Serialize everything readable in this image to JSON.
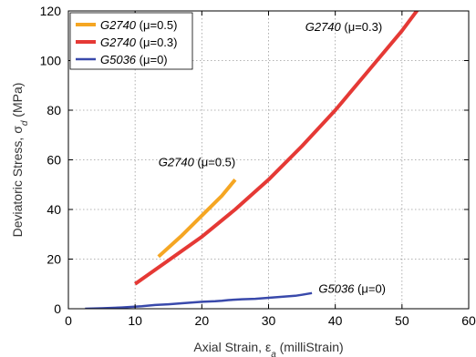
{
  "chart_data": {
    "type": "line",
    "xlabel": "Axial Strain, ε",
    "xlabel_sub": "a",
    "xlabel_unit": " (milliStrain)",
    "ylabel": "Deviatoric Stress, σ",
    "ylabel_sub": "d",
    "ylabel_unit": " (MPa)",
    "xlim": [
      0,
      60
    ],
    "ylim": [
      0,
      120
    ],
    "xticks": [
      "0",
      "10",
      "20",
      "30",
      "40",
      "50",
      "60"
    ],
    "yticks": [
      "0",
      "20",
      "40",
      "60",
      "80",
      "100",
      "120"
    ],
    "grid": true,
    "legend_position": "top-left",
    "series": [
      {
        "name": "G2740",
        "name_param": " (μ=0.5)",
        "color": "#f5a623",
        "x": [
          13.5,
          17,
          20,
          23,
          25
        ],
        "y": [
          21,
          29.5,
          37.5,
          45.5,
          52
        ]
      },
      {
        "name": "G2740",
        "name_param": " (μ=0.3)",
        "color": "#e53935",
        "x": [
          10,
          15,
          20,
          25,
          30,
          35,
          40,
          45,
          50,
          52.5
        ],
        "y": [
          10,
          19.5,
          29,
          40,
          52,
          65.5,
          80,
          96,
          112,
          121
        ]
      },
      {
        "name": "G5036",
        "name_param": " (μ=0)",
        "color": "#3949ab",
        "x": [
          2.5,
          5,
          8,
          11,
          13,
          15,
          17,
          20,
          22,
          23,
          24,
          26,
          28,
          30,
          32,
          34,
          35,
          36.5
        ],
        "y": [
          0,
          0.2,
          0.5,
          1.0,
          1.5,
          1.8,
          2.2,
          2.8,
          3.0,
          3.2,
          3.5,
          3.8,
          4.0,
          4.4,
          4.8,
          5.2,
          5.6,
          6.3
        ]
      }
    ],
    "annotations": [
      {
        "name": "G2740",
        "param": " (μ=0.3)",
        "x": 35.5,
        "y": 112
      },
      {
        "name": "G2740",
        "param": " (μ=0.5)",
        "x": 13.5,
        "y": 57.5
      },
      {
        "name": "G5036",
        "param": " (μ=0)",
        "x": 37.5,
        "y": 6.5
      }
    ]
  }
}
